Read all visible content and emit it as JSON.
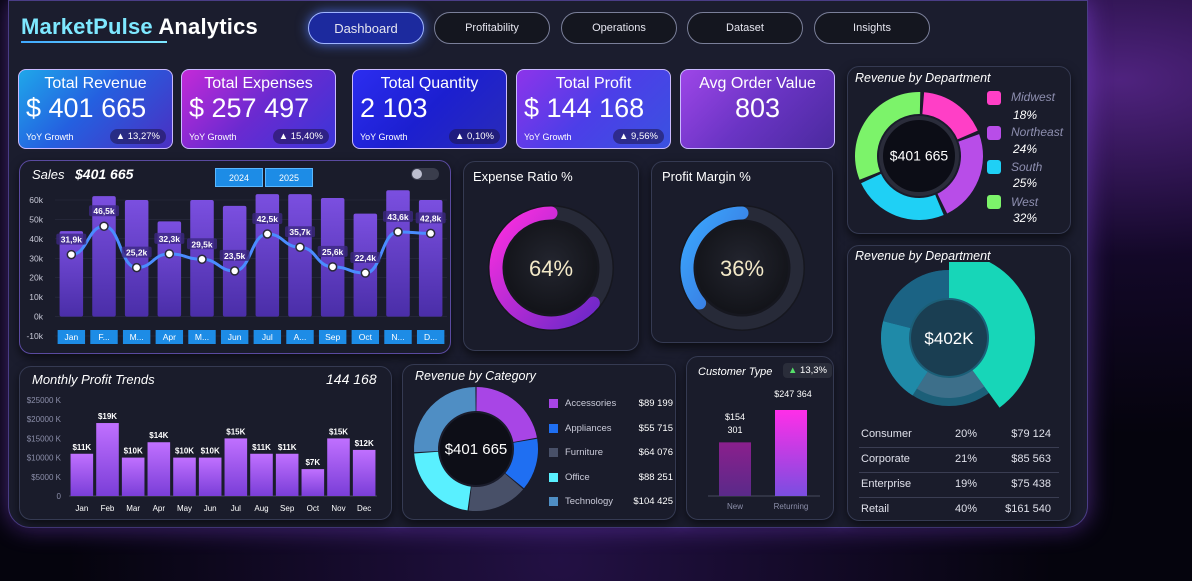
{
  "app": {
    "title_part1": "MarketPulse",
    "title_part2": "Analytics"
  },
  "nav": [
    {
      "label": "Dashboard",
      "active": true
    },
    {
      "label": "Profitability"
    },
    {
      "label": "Operations"
    },
    {
      "label": "Dataset"
    },
    {
      "label": "Insights"
    }
  ],
  "kpis": [
    {
      "title": "Total Revenue",
      "value": "$ 401 665",
      "foot": "YoY Growth",
      "badge": "▲ 13,27%"
    },
    {
      "title": "Total Expenses",
      "value": "$ 257 497",
      "foot": "YoY Growth",
      "badge": "▲ 15,40%"
    },
    {
      "title": "Total Quantity",
      "value": "2 103",
      "foot": "YoY Growth",
      "badge": "▲ 0,10%"
    },
    {
      "title": "Total Profit",
      "value": "$ 144 168",
      "foot": "YoY Growth",
      "badge": "▲ 9,56%"
    },
    {
      "title": "Avg Order Value",
      "value": "803"
    }
  ],
  "sales": {
    "title": "Sales",
    "total": "$401 665",
    "years": [
      "2024",
      "2025"
    ],
    "chart_data": {
      "type": "bar",
      "categories": [
        "Jan",
        "F...",
        "M...",
        "Apr",
        "M...",
        "Jun",
        "Jul",
        "A...",
        "Sep",
        "Oct",
        "N...",
        "D..."
      ],
      "values": [
        31.9,
        46.5,
        25.2,
        32.3,
        29.5,
        23.5,
        42.5,
        35.7,
        25.6,
        22.4,
        43.6,
        42.8
      ],
      "labels": [
        "31,9k",
        "46,5k",
        "25,2k",
        "32,3k",
        "29,5k",
        "23,5k",
        "42,5k",
        "35,7k",
        "25,6k",
        "22,4k",
        "43,6k",
        "42,8k"
      ],
      "bar_values": [
        44,
        62,
        60,
        49,
        60,
        57,
        63,
        63,
        61,
        53,
        65,
        60
      ],
      "yticks": [
        "60k",
        "50k",
        "40k",
        "30k",
        "20k",
        "10k",
        "0k",
        "-10k"
      ],
      "ylim": [
        -10,
        60
      ]
    }
  },
  "expense_ratio": {
    "title": "Expense Ratio %",
    "value": "64%",
    "fraction": 0.64
  },
  "profit_margin": {
    "title": "Profit Margin %",
    "value": "36%",
    "fraction": 0.36
  },
  "dept1": {
    "title": "Revenue by Department",
    "center": "$401 665",
    "chart_data": {
      "type": "pie",
      "categories": [
        "Midwest",
        "Northeast",
        "South",
        "West"
      ],
      "values": [
        18,
        24,
        25,
        32
      ],
      "labels": [
        "18%",
        "24%",
        "25%",
        "32%"
      ],
      "colors": [
        "#ff3fc6",
        "#b84de8",
        "#1fd0f5",
        "#7cf36a"
      ]
    }
  },
  "profit_trends": {
    "title": "Monthly Profit Trends",
    "total": "144 168",
    "chart_data": {
      "type": "bar",
      "categories": [
        "Jan",
        "Feb",
        "Mar",
        "Apr",
        "May",
        "Jun",
        "Jul",
        "Aug",
        "Sep",
        "Oct",
        "Nov",
        "Dec"
      ],
      "values": [
        11,
        19,
        10,
        14,
        10,
        10,
        15,
        11,
        11,
        7,
        15,
        12
      ],
      "labels": [
        "$11K",
        "$19K",
        "$10K",
        "$14K",
        "$10K",
        "$10K",
        "$15K",
        "$11K",
        "$11K",
        "$7K",
        "$15K",
        "$12K"
      ],
      "yticks": [
        "$25000 K",
        "$20000 K",
        "$15000 K",
        "$10000 K",
        "$5000 K",
        "0"
      ],
      "ylim": [
        0,
        25
      ]
    }
  },
  "category": {
    "title": "Revenue by Category",
    "center": "$401 665",
    "chart_data": {
      "type": "pie",
      "categories": [
        "Accessories",
        "Appliances",
        "Furniture",
        "Office",
        "Technology"
      ],
      "values": [
        89199,
        55715,
        64076,
        88251,
        104425
      ],
      "labels": [
        "$89 199",
        "$55 715",
        "$64 076",
        "$88 251",
        "$104 425"
      ],
      "colors": [
        "#a845e6",
        "#1f6ff2",
        "#485068",
        "#59f0ff",
        "#4f8ec4"
      ]
    }
  },
  "customer_type": {
    "title": "Customer Type",
    "badge": "▲ 13,3%",
    "chart_data": {
      "type": "bar",
      "categories": [
        "New",
        "Returning"
      ],
      "values": [
        154301,
        247364
      ],
      "labels": [
        "$154\n301",
        "$247 364"
      ]
    },
    "label_new_1": "$154",
    "label_new_2": "301"
  },
  "dept2": {
    "title": "Revenue by Department",
    "center": "$402K",
    "rows": [
      {
        "name": "Consumer",
        "pct": "20%",
        "value": "$79 124"
      },
      {
        "name": "Corporate",
        "pct": "21%",
        "value": "$85 563"
      },
      {
        "name": "Enterprise",
        "pct": "19%",
        "value": "$75 438"
      },
      {
        "name": "Retail",
        "pct": "40%",
        "value": "$161 540"
      }
    ],
    "chart_data": {
      "type": "pie",
      "categories": [
        "Consumer",
        "Corporate",
        "Enterprise",
        "Retail"
      ],
      "values": [
        20,
        21,
        19,
        40
      ],
      "colors": [
        "#1f8aa8",
        "#1b6384",
        "#3d6f8a",
        "#17d6b8"
      ]
    }
  }
}
